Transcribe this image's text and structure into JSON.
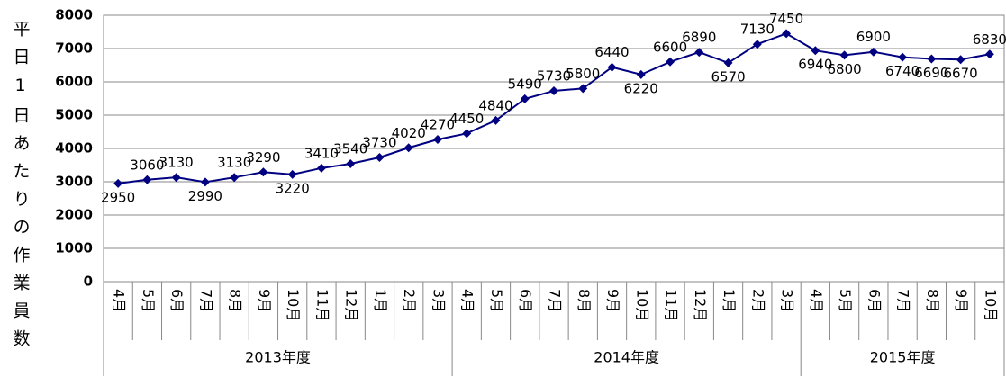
{
  "chart_data": {
    "type": "line",
    "y_label": "平日1日あたりの作業員数",
    "groups": [
      {
        "label": "2013年度",
        "categories": [
          "4月",
          "5月",
          "6月",
          "7月",
          "8月",
          "9月",
          "10月",
          "11月",
          "12月",
          "1月",
          "2月",
          "3月"
        ]
      },
      {
        "label": "2014年度",
        "categories": [
          "4月",
          "5月",
          "6月",
          "7月",
          "8月",
          "9月",
          "10月",
          "11月",
          "12月",
          "1月",
          "2月",
          "3月"
        ]
      },
      {
        "label": "2015年度",
        "categories": [
          "4月",
          "5月",
          "6月",
          "7月",
          "8月",
          "9月",
          "10月"
        ]
      }
    ],
    "series": [
      {
        "color": "#000080",
        "values": [
          2950,
          3060,
          3130,
          2990,
          3130,
          3290,
          3220,
          3410,
          3540,
          3730,
          4020,
          4270,
          4450,
          4840,
          5490,
          5730,
          5800,
          6440,
          6220,
          6600,
          6890,
          6570,
          7130,
          7450,
          6940,
          6800,
          6900,
          6740,
          6690,
          6670,
          6830
        ]
      }
    ],
    "ylim": [
      0,
      8000
    ],
    "yticks": [
      0,
      1000,
      2000,
      3000,
      4000,
      5000,
      6000,
      7000,
      8000
    ],
    "grid": true
  }
}
